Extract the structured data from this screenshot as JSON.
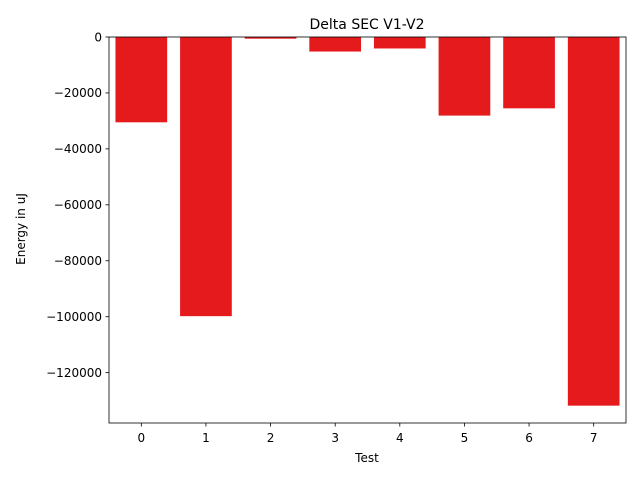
{
  "chart_data": {
    "type": "bar",
    "title": "Delta SEC V1-V2",
    "xlabel": "Test",
    "ylabel": "Energy in uJ",
    "categories": [
      "0",
      "1",
      "2",
      "3",
      "4",
      "5",
      "6",
      "7"
    ],
    "values": [
      -30500,
      -99800,
      -600,
      -5200,
      -4100,
      -28100,
      -25500,
      -131800
    ],
    "ylim": [
      -138000,
      0
    ],
    "yticks": [
      0,
      -20000,
      -40000,
      -60000,
      -80000,
      -100000,
      -120000
    ],
    "ytick_labels": [
      "0",
      "−20000",
      "−40000",
      "−60000",
      "−80000",
      "−100000",
      "−120000"
    ],
    "bar_color": "#e41a1c",
    "grid": false,
    "legend": null
  }
}
